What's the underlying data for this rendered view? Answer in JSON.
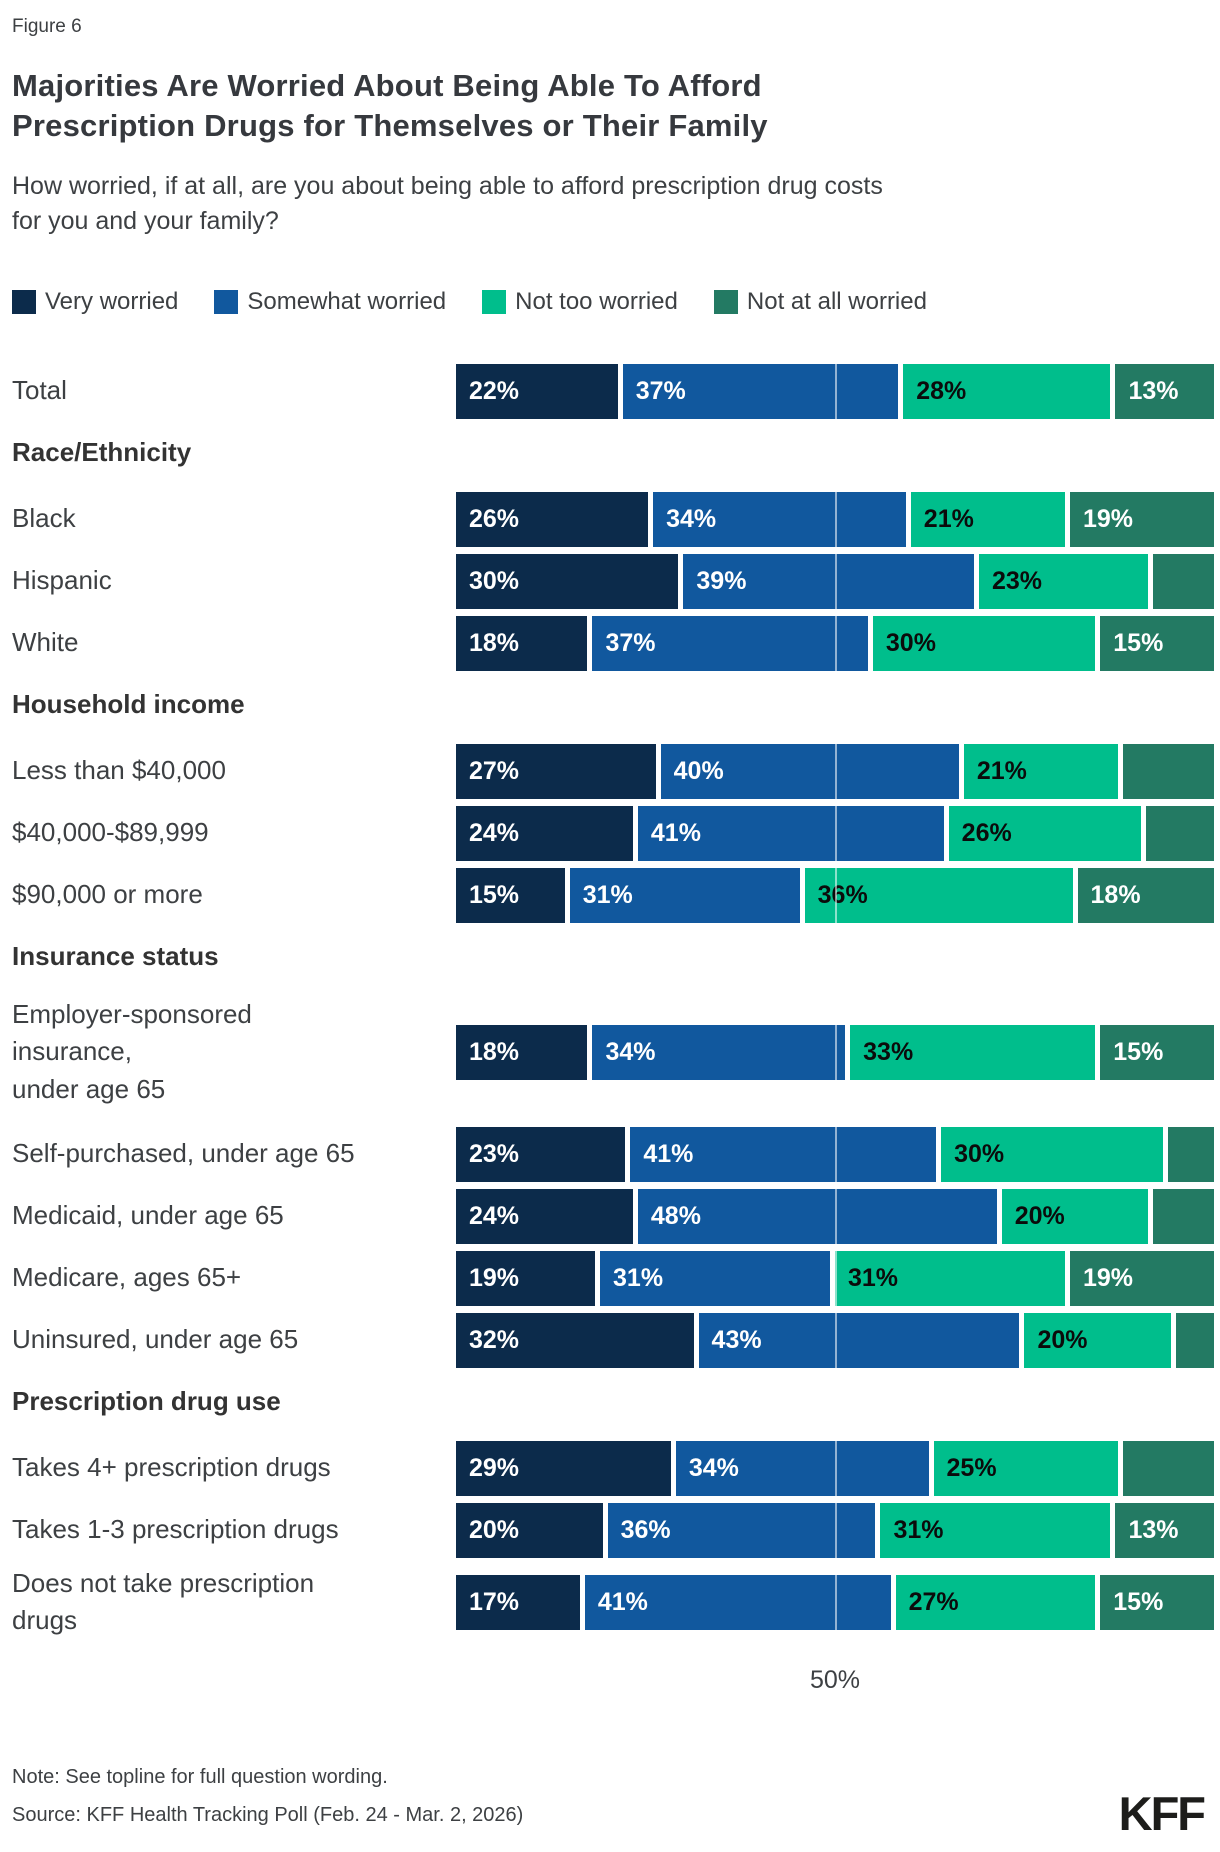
{
  "figure_label": "Figure 6",
  "title": "Majorities Are Worried About Being Able To Afford\nPrescription Drugs for Themselves or Their Family",
  "subtitle": "How worried, if at all, are you about being able to afford prescription drug costs\nfor you and your family?",
  "legend": [
    {
      "label": "Very worried",
      "color": "#0C2B4B"
    },
    {
      "label": "Somewhat worried",
      "color": "#11589E"
    },
    {
      "label": "Not too worried",
      "color": "#00BE8C"
    },
    {
      "label": "Not at all worried",
      "color": "#237A63"
    }
  ],
  "axis": {
    "tick_label": "50%",
    "gridline_percent": 50
  },
  "note": "Note: See topline for full question wording.",
  "source": "Source: KFF Health Tracking Poll (Feb. 24 - Mar. 2, 2026)",
  "logo_text": "KFF",
  "chart_data": {
    "type": "bar",
    "orientation": "horizontal",
    "stacked": true,
    "xlim": [
      0,
      100
    ],
    "series_names": [
      "Very worried",
      "Somewhat worried",
      "Not too worried",
      "Not at all worried"
    ],
    "rows": [
      {
        "type": "bar",
        "label": "Total",
        "values": [
          22,
          37,
          28,
          13
        ],
        "labeled": [
          1,
          1,
          1,
          1
        ]
      },
      {
        "type": "header",
        "label": "Race/Ethnicity"
      },
      {
        "type": "bar",
        "label": "Black",
        "values": [
          26,
          34,
          21,
          19
        ],
        "labeled": [
          1,
          1,
          1,
          1
        ]
      },
      {
        "type": "bar",
        "label": "Hispanic",
        "values": [
          30,
          39,
          23,
          8
        ],
        "labeled": [
          1,
          1,
          1,
          0
        ]
      },
      {
        "type": "bar",
        "label": "White",
        "values": [
          18,
          37,
          30,
          15
        ],
        "labeled": [
          1,
          1,
          1,
          1
        ]
      },
      {
        "type": "header",
        "label": "Household income"
      },
      {
        "type": "bar",
        "label": "Less than $40,000",
        "values": [
          27,
          40,
          21,
          12
        ],
        "labeled": [
          1,
          1,
          1,
          0
        ]
      },
      {
        "type": "bar",
        "label": "$40,000-$89,999",
        "values": [
          24,
          41,
          26,
          9
        ],
        "labeled": [
          1,
          1,
          1,
          0
        ]
      },
      {
        "type": "bar",
        "label": "$90,000 or more",
        "values": [
          15,
          31,
          36,
          18
        ],
        "labeled": [
          1,
          1,
          1,
          1
        ]
      },
      {
        "type": "header",
        "label": "Insurance status"
      },
      {
        "type": "bar",
        "label": "Employer-sponsored\ninsurance,\nunder age 65",
        "values": [
          18,
          34,
          33,
          15
        ],
        "labeled": [
          1,
          1,
          1,
          1
        ],
        "tall": true
      },
      {
        "type": "bar",
        "label": "Self-purchased, under age 65",
        "values": [
          23,
          41,
          30,
          6
        ],
        "labeled": [
          1,
          1,
          1,
          0
        ]
      },
      {
        "type": "bar",
        "label": "Medicaid, under age 65",
        "values": [
          24,
          48,
          20,
          8
        ],
        "labeled": [
          1,
          1,
          1,
          0
        ]
      },
      {
        "type": "bar",
        "label": "Medicare, ages 65+",
        "values": [
          19,
          31,
          31,
          19
        ],
        "labeled": [
          1,
          1,
          1,
          1
        ]
      },
      {
        "type": "bar",
        "label": "Uninsured, under age 65",
        "values": [
          32,
          43,
          20,
          5
        ],
        "labeled": [
          1,
          1,
          1,
          0
        ]
      },
      {
        "type": "header",
        "label": "Prescription drug use"
      },
      {
        "type": "bar",
        "label": "Takes 4+ prescription drugs",
        "values": [
          29,
          34,
          25,
          12
        ],
        "labeled": [
          1,
          1,
          1,
          0
        ]
      },
      {
        "type": "bar",
        "label": "Takes 1-3 prescription drugs",
        "values": [
          20,
          36,
          31,
          13
        ],
        "labeled": [
          1,
          1,
          1,
          1
        ]
      },
      {
        "type": "bar",
        "label": "Does not take prescription\ndrugs",
        "values": [
          17,
          41,
          27,
          15
        ],
        "labeled": [
          1,
          1,
          1,
          1
        ],
        "tall": true
      }
    ]
  }
}
